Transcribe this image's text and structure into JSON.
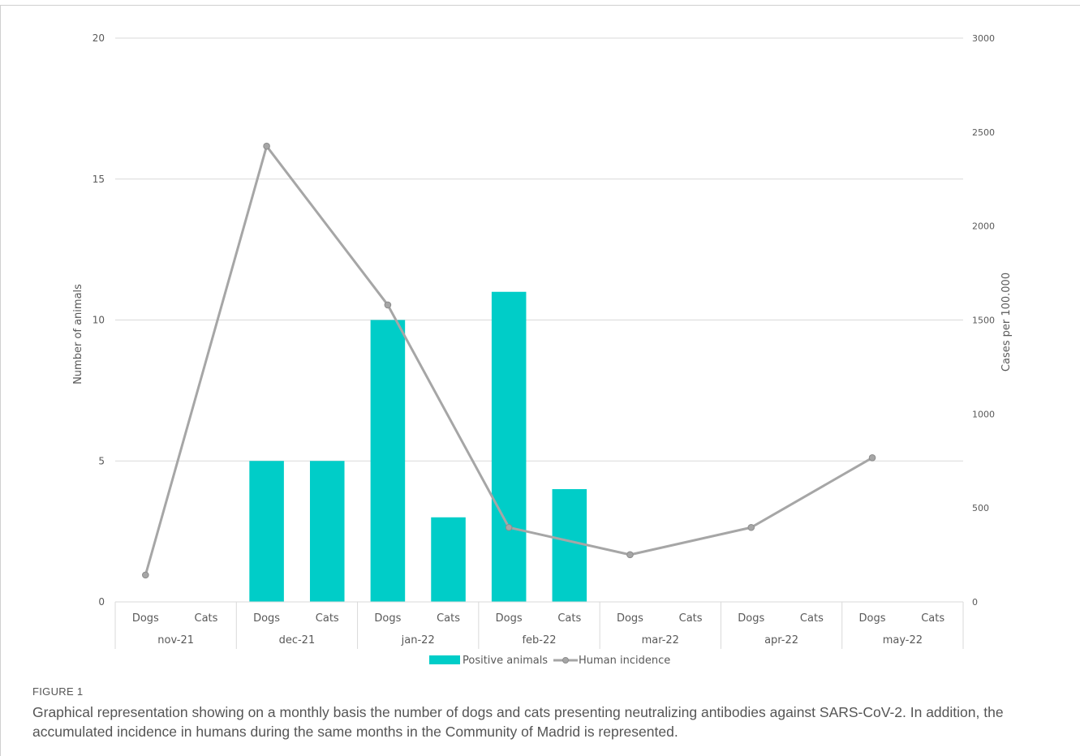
{
  "chart_data": {
    "type": "bar",
    "months": [
      "nov-21",
      "dec-21",
      "jan-22",
      "feb-22",
      "mar-22",
      "apr-22",
      "may-22"
    ],
    "subcategories": [
      "Dogs",
      "Cats"
    ],
    "series": [
      {
        "name": "Positive animals",
        "type": "bar",
        "axis": "left",
        "color": "#00cdc8",
        "values": [
          0,
          0,
          5,
          5,
          10,
          3,
          11,
          4,
          0,
          0,
          0,
          0,
          0,
          0
        ]
      },
      {
        "name": "Human incidence",
        "type": "line",
        "axis": "right",
        "color": "#a6a6a6",
        "values": [
          143,
          2425,
          1580,
          396,
          251,
          396,
          767
        ]
      }
    ],
    "ylabel_left": "Number of animals",
    "ylabel_right": "Cases per 100.000",
    "ylim_left": [
      0,
      20
    ],
    "ylim_right": [
      0,
      3000
    ],
    "yticks_left": [
      0,
      5,
      10,
      15,
      20
    ],
    "yticks_right": [
      0,
      500,
      1000,
      1500,
      2000,
      2500,
      3000
    ],
    "grid": true,
    "legend_position": "bottom"
  },
  "caption": {
    "label": "FIGURE 1",
    "text": "Graphical representation showing on a monthly basis the number of dogs and cats presenting neutralizing antibodies against SARS-CoV-2. In addition, the accumulated incidence in humans during the same months in the Community of Madrid is represented."
  }
}
